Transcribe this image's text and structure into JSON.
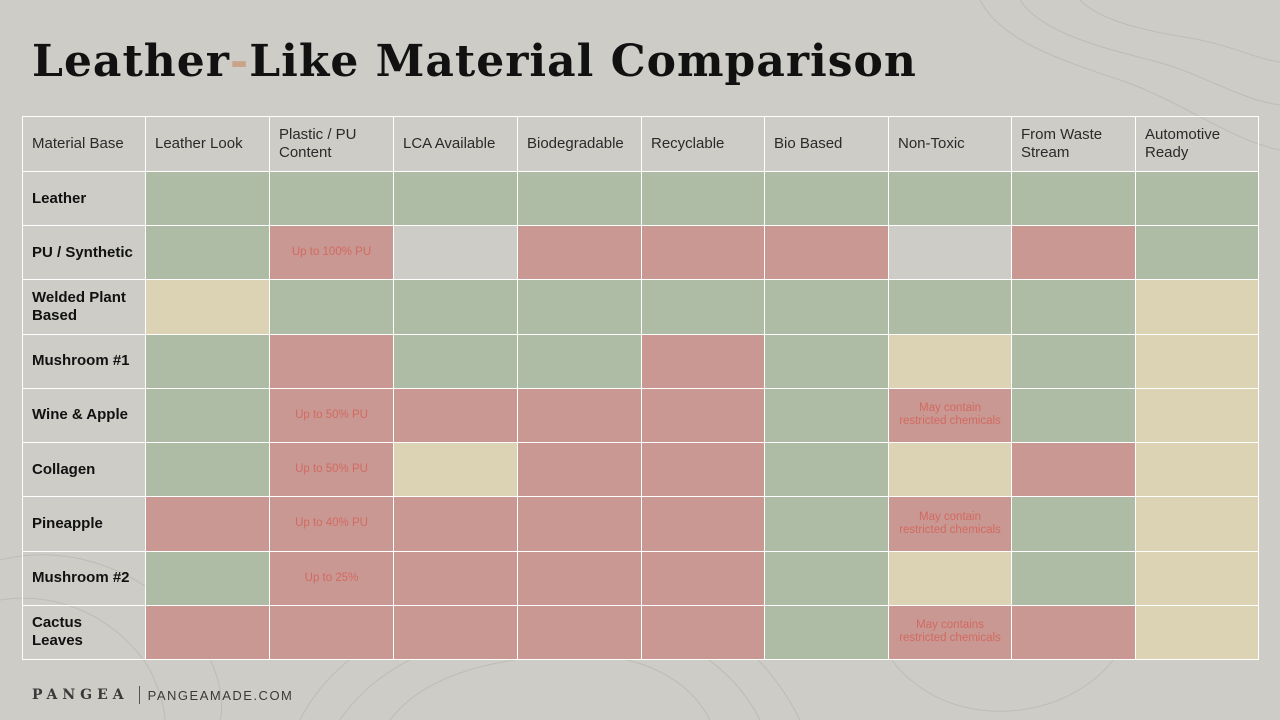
{
  "title_part1": "Leather",
  "title_dash": "-",
  "title_part2": "Like Material Comparison",
  "colors": {
    "g": "#aebba5",
    "r": "#c99892",
    "y": "#dbd3b3",
    "n": "#cdccc6"
  },
  "table": {
    "headers": [
      "Material Base",
      "Leather Look",
      "Plastic / PU Content",
      "LCA Available",
      "Biodegradable",
      "Recyclable",
      "Bio Based",
      "Non-Toxic",
      "From Waste Stream",
      "Automotive Ready"
    ],
    "rows": [
      {
        "name": "Leather",
        "cells": [
          {
            "s": "g"
          },
          {
            "s": "g"
          },
          {
            "s": "g"
          },
          {
            "s": "g"
          },
          {
            "s": "g"
          },
          {
            "s": "g"
          },
          {
            "s": "g"
          },
          {
            "s": "g"
          },
          {
            "s": "g"
          }
        ]
      },
      {
        "name": "PU / Synthetic",
        "cells": [
          {
            "s": "g"
          },
          {
            "s": "r",
            "t": "Up to 100% PU"
          },
          {
            "s": "n"
          },
          {
            "s": "r"
          },
          {
            "s": "r"
          },
          {
            "s": "r"
          },
          {
            "s": "n"
          },
          {
            "s": "r"
          },
          {
            "s": "g"
          }
        ]
      },
      {
        "name": "Welded Plant Based",
        "cells": [
          {
            "s": "y"
          },
          {
            "s": "g"
          },
          {
            "s": "g"
          },
          {
            "s": "g"
          },
          {
            "s": "g"
          },
          {
            "s": "g"
          },
          {
            "s": "g"
          },
          {
            "s": "g"
          },
          {
            "s": "y"
          }
        ]
      },
      {
        "name": "Mushroom #1",
        "cells": [
          {
            "s": "g"
          },
          {
            "s": "r"
          },
          {
            "s": "g"
          },
          {
            "s": "g"
          },
          {
            "s": "r"
          },
          {
            "s": "g"
          },
          {
            "s": "y"
          },
          {
            "s": "g"
          },
          {
            "s": "y"
          }
        ]
      },
      {
        "name": "Wine & Apple",
        "cells": [
          {
            "s": "g"
          },
          {
            "s": "r",
            "t": "Up to 50% PU"
          },
          {
            "s": "r"
          },
          {
            "s": "r"
          },
          {
            "s": "r"
          },
          {
            "s": "g"
          },
          {
            "s": "r",
            "t": "May contain restricted chemicals"
          },
          {
            "s": "g"
          },
          {
            "s": "y"
          }
        ]
      },
      {
        "name": "Collagen",
        "cells": [
          {
            "s": "g"
          },
          {
            "s": "r",
            "t": "Up to 50% PU"
          },
          {
            "s": "y"
          },
          {
            "s": "r"
          },
          {
            "s": "r"
          },
          {
            "s": "g"
          },
          {
            "s": "y"
          },
          {
            "s": "r"
          },
          {
            "s": "y"
          }
        ]
      },
      {
        "name": "Pineapple",
        "cells": [
          {
            "s": "r"
          },
          {
            "s": "r",
            "t": "Up to 40% PU"
          },
          {
            "s": "r"
          },
          {
            "s": "r"
          },
          {
            "s": "r"
          },
          {
            "s": "g"
          },
          {
            "s": "r",
            "t": "May contain restricted chemicals"
          },
          {
            "s": "g"
          },
          {
            "s": "y"
          }
        ]
      },
      {
        "name": "Mushroom #2",
        "cells": [
          {
            "s": "g"
          },
          {
            "s": "r",
            "t": "Up to 25%"
          },
          {
            "s": "r"
          },
          {
            "s": "r"
          },
          {
            "s": "r"
          },
          {
            "s": "g"
          },
          {
            "s": "y"
          },
          {
            "s": "g"
          },
          {
            "s": "y"
          }
        ]
      },
      {
        "name": "Cactus Leaves",
        "cells": [
          {
            "s": "r"
          },
          {
            "s": "r"
          },
          {
            "s": "r"
          },
          {
            "s": "r"
          },
          {
            "s": "r"
          },
          {
            "s": "g"
          },
          {
            "s": "r",
            "t": "May contains restricted chemicals"
          },
          {
            "s": "r"
          },
          {
            "s": "y"
          }
        ]
      }
    ]
  },
  "footer": {
    "brand": "PANGEA",
    "site": "PANGEAMADE.COM"
  }
}
